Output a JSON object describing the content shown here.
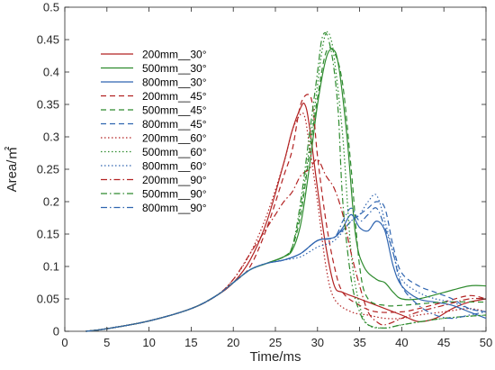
{
  "chart_data": {
    "type": "line",
    "title": "",
    "xlabel": "Time/ms",
    "ylabel": "Area/㎡",
    "xlim": [
      0,
      50
    ],
    "ylim": [
      0,
      0.5
    ],
    "x_ticks": [
      "0",
      "5",
      "10",
      "15",
      "20",
      "25",
      "30",
      "35",
      "40",
      "45",
      "50"
    ],
    "y_ticks": [
      "0",
      "0.05",
      "0.1",
      "0.15",
      "0.2",
      "0.25",
      "0.3",
      "0.35",
      "0.4",
      "0.45",
      "0.5"
    ],
    "grid": false,
    "legend_position": "top-left",
    "colors": {
      "200mm": "#b22222",
      "500mm": "#2e8b2e",
      "800mm": "#2f65b0"
    },
    "series": [
      {
        "name": "200mm__30°",
        "color": "#b22222",
        "dash": "solid",
        "points": [
          [
            2.5,
            0
          ],
          [
            5,
            0.004
          ],
          [
            10,
            0.016
          ],
          [
            15,
            0.035
          ],
          [
            18,
            0.055
          ],
          [
            20,
            0.075
          ],
          [
            22,
            0.11
          ],
          [
            24,
            0.17
          ],
          [
            26,
            0.26
          ],
          [
            27,
            0.31
          ],
          [
            28,
            0.345
          ],
          [
            28.5,
            0.35
          ],
          [
            29,
            0.32
          ],
          [
            30,
            0.22
          ],
          [
            31,
            0.13
          ],
          [
            32,
            0.07
          ],
          [
            33,
            0.06
          ],
          [
            35,
            0.05
          ],
          [
            37,
            0.04
          ],
          [
            40,
            0.025
          ],
          [
            42,
            0.015
          ],
          [
            44,
            0.02
          ],
          [
            46,
            0.035
          ],
          [
            48,
            0.045
          ],
          [
            50,
            0.05
          ]
        ]
      },
      {
        "name": "500mm__30°",
        "color": "#2e8b2e",
        "dash": "solid",
        "points": [
          [
            2.5,
            0
          ],
          [
            5,
            0.004
          ],
          [
            10,
            0.016
          ],
          [
            15,
            0.035
          ],
          [
            18,
            0.055
          ],
          [
            20,
            0.075
          ],
          [
            22,
            0.095
          ],
          [
            24,
            0.105
          ],
          [
            26,
            0.115
          ],
          [
            27,
            0.125
          ],
          [
            28,
            0.165
          ],
          [
            29,
            0.25
          ],
          [
            30,
            0.35
          ],
          [
            31,
            0.42
          ],
          [
            31.8,
            0.435
          ],
          [
            32.5,
            0.41
          ],
          [
            33.5,
            0.3
          ],
          [
            34.5,
            0.15
          ],
          [
            35.5,
            0.1
          ],
          [
            37,
            0.08
          ],
          [
            38,
            0.075
          ],
          [
            39,
            0.06
          ],
          [
            40,
            0.05
          ],
          [
            42,
            0.05
          ],
          [
            45,
            0.06
          ],
          [
            48,
            0.07
          ],
          [
            50,
            0.07
          ]
        ]
      },
      {
        "name": "800mm__30°",
        "color": "#2f65b0",
        "dash": "solid",
        "points": [
          [
            2.5,
            0
          ],
          [
            5,
            0.004
          ],
          [
            10,
            0.016
          ],
          [
            15,
            0.035
          ],
          [
            18,
            0.055
          ],
          [
            20,
            0.075
          ],
          [
            22,
            0.095
          ],
          [
            24,
            0.105
          ],
          [
            26,
            0.11
          ],
          [
            28,
            0.12
          ],
          [
            30,
            0.14
          ],
          [
            32,
            0.145
          ],
          [
            33,
            0.16
          ],
          [
            34,
            0.18
          ],
          [
            35,
            0.16
          ],
          [
            36,
            0.155
          ],
          [
            37,
            0.17
          ],
          [
            38,
            0.155
          ],
          [
            39,
            0.1
          ],
          [
            40,
            0.07
          ],
          [
            42,
            0.05
          ],
          [
            44,
            0.045
          ],
          [
            46,
            0.04
          ],
          [
            48,
            0.03
          ],
          [
            50,
            0.02
          ]
        ]
      },
      {
        "name": "200mm__45°",
        "color": "#b22222",
        "dash": "dashed",
        "points": [
          [
            2.5,
            0
          ],
          [
            5,
            0.004
          ],
          [
            10,
            0.016
          ],
          [
            15,
            0.035
          ],
          [
            18,
            0.055
          ],
          [
            20,
            0.075
          ],
          [
            22,
            0.1
          ],
          [
            24,
            0.16
          ],
          [
            26,
            0.24
          ],
          [
            27,
            0.28
          ],
          [
            28,
            0.35
          ],
          [
            29,
            0.365
          ],
          [
            29.5,
            0.34
          ],
          [
            30,
            0.27
          ],
          [
            31,
            0.17
          ],
          [
            32,
            0.1
          ],
          [
            33,
            0.06
          ],
          [
            35,
            0.04
          ],
          [
            37,
            0.03
          ],
          [
            40,
            0.03
          ],
          [
            42,
            0.035
          ],
          [
            45,
            0.045
          ],
          [
            48,
            0.055
          ],
          [
            50,
            0.05
          ]
        ]
      },
      {
        "name": "500mm__45°",
        "color": "#2e8b2e",
        "dash": "dashed",
        "points": [
          [
            2.5,
            0
          ],
          [
            5,
            0.004
          ],
          [
            10,
            0.016
          ],
          [
            15,
            0.035
          ],
          [
            18,
            0.055
          ],
          [
            20,
            0.075
          ],
          [
            22,
            0.095
          ],
          [
            24,
            0.105
          ],
          [
            26,
            0.115
          ],
          [
            27,
            0.13
          ],
          [
            28,
            0.18
          ],
          [
            29,
            0.27
          ],
          [
            30,
            0.36
          ],
          [
            31,
            0.43
          ],
          [
            32,
            0.43
          ],
          [
            33,
            0.38
          ],
          [
            34,
            0.25
          ],
          [
            35,
            0.1
          ],
          [
            36,
            0.05
          ],
          [
            38,
            0.04
          ],
          [
            40,
            0.04
          ],
          [
            45,
            0.045
          ],
          [
            50,
            0.045
          ]
        ]
      },
      {
        "name": "800mm__45°",
        "color": "#2f65b0",
        "dash": "dashed",
        "points": [
          [
            2.5,
            0
          ],
          [
            5,
            0.004
          ],
          [
            10,
            0.016
          ],
          [
            15,
            0.035
          ],
          [
            18,
            0.055
          ],
          [
            20,
            0.075
          ],
          [
            22,
            0.095
          ],
          [
            24,
            0.105
          ],
          [
            26,
            0.11
          ],
          [
            28,
            0.12
          ],
          [
            30,
            0.14
          ],
          [
            32,
            0.145
          ],
          [
            34,
            0.17
          ],
          [
            35,
            0.18
          ],
          [
            36,
            0.19
          ],
          [
            37,
            0.2
          ],
          [
            38,
            0.19
          ],
          [
            39,
            0.13
          ],
          [
            40,
            0.09
          ],
          [
            42,
            0.07
          ],
          [
            44,
            0.06
          ],
          [
            46,
            0.05
          ],
          [
            48,
            0.035
          ],
          [
            50,
            0.03
          ]
        ]
      },
      {
        "name": "200mm__60°",
        "color": "#b22222",
        "dash": "dotted",
        "points": [
          [
            2.5,
            0
          ],
          [
            5,
            0.004
          ],
          [
            10,
            0.016
          ],
          [
            15,
            0.035
          ],
          [
            18,
            0.055
          ],
          [
            20,
            0.08
          ],
          [
            22,
            0.12
          ],
          [
            24,
            0.18
          ],
          [
            26,
            0.26
          ],
          [
            27,
            0.31
          ],
          [
            28,
            0.335
          ],
          [
            28.5,
            0.33
          ],
          [
            29,
            0.29
          ],
          [
            30,
            0.2
          ],
          [
            31,
            0.1
          ],
          [
            32,
            0.05
          ],
          [
            34,
            0.03
          ],
          [
            36,
            0.025
          ],
          [
            38,
            0.02
          ],
          [
            40,
            0.02
          ],
          [
            42,
            0.025
          ],
          [
            45,
            0.03
          ],
          [
            48,
            0.035
          ],
          [
            50,
            0.03
          ]
        ]
      },
      {
        "name": "500mm__60°",
        "color": "#2e8b2e",
        "dash": "dotted",
        "points": [
          [
            2.5,
            0
          ],
          [
            5,
            0.004
          ],
          [
            10,
            0.016
          ],
          [
            15,
            0.035
          ],
          [
            18,
            0.055
          ],
          [
            20,
            0.075
          ],
          [
            22,
            0.095
          ],
          [
            24,
            0.105
          ],
          [
            26,
            0.115
          ],
          [
            27,
            0.13
          ],
          [
            28,
            0.19
          ],
          [
            29,
            0.28
          ],
          [
            30,
            0.38
          ],
          [
            30.5,
            0.43
          ],
          [
            31,
            0.46
          ],
          [
            31.5,
            0.455
          ],
          [
            32,
            0.42
          ],
          [
            33,
            0.3
          ],
          [
            34,
            0.12
          ],
          [
            35,
            0.04
          ],
          [
            36,
            0.01
          ],
          [
            38,
            0.005
          ],
          [
            40,
            0.01
          ],
          [
            45,
            0.02
          ],
          [
            50,
            0.025
          ]
        ]
      },
      {
        "name": "800mm__60°",
        "color": "#2f65b0",
        "dash": "dotted",
        "points": [
          [
            2.5,
            0
          ],
          [
            5,
            0.004
          ],
          [
            10,
            0.016
          ],
          [
            15,
            0.035
          ],
          [
            18,
            0.055
          ],
          [
            20,
            0.075
          ],
          [
            22,
            0.095
          ],
          [
            24,
            0.105
          ],
          [
            26,
            0.11
          ],
          [
            28,
            0.115
          ],
          [
            30,
            0.13
          ],
          [
            32,
            0.14
          ],
          [
            34,
            0.17
          ],
          [
            35,
            0.18
          ],
          [
            36,
            0.2
          ],
          [
            37,
            0.21
          ],
          [
            38,
            0.17
          ],
          [
            39,
            0.12
          ],
          [
            40,
            0.08
          ],
          [
            42,
            0.06
          ],
          [
            44,
            0.05
          ],
          [
            46,
            0.045
          ],
          [
            48,
            0.035
          ],
          [
            50,
            0.03
          ]
        ]
      },
      {
        "name": "200mm__90°",
        "color": "#b22222",
        "dash": "dashdot",
        "points": [
          [
            2.5,
            0
          ],
          [
            5,
            0.004
          ],
          [
            10,
            0.016
          ],
          [
            15,
            0.035
          ],
          [
            18,
            0.055
          ],
          [
            20,
            0.08
          ],
          [
            22,
            0.12
          ],
          [
            24,
            0.16
          ],
          [
            25,
            0.18
          ],
          [
            26,
            0.2
          ],
          [
            27,
            0.215
          ],
          [
            28,
            0.24
          ],
          [
            29,
            0.25
          ],
          [
            30,
            0.265
          ],
          [
            31,
            0.24
          ],
          [
            32,
            0.22
          ],
          [
            33,
            0.18
          ],
          [
            34,
            0.12
          ],
          [
            35,
            0.07
          ],
          [
            36,
            0.03
          ],
          [
            37,
            0.015
          ],
          [
            38,
            0.01
          ],
          [
            40,
            0.02
          ],
          [
            42,
            0.03
          ],
          [
            45,
            0.04
          ],
          [
            48,
            0.05
          ],
          [
            50,
            0.05
          ]
        ]
      },
      {
        "name": "500mm__90°",
        "color": "#2e8b2e",
        "dash": "dashdot",
        "points": [
          [
            2.5,
            0
          ],
          [
            5,
            0.004
          ],
          [
            10,
            0.016
          ],
          [
            15,
            0.035
          ],
          [
            18,
            0.055
          ],
          [
            20,
            0.075
          ],
          [
            22,
            0.095
          ],
          [
            24,
            0.105
          ],
          [
            26,
            0.115
          ],
          [
            27,
            0.13
          ],
          [
            28,
            0.2
          ],
          [
            29,
            0.3
          ],
          [
            30,
            0.4
          ],
          [
            30.5,
            0.45
          ],
          [
            31,
            0.46
          ],
          [
            31.5,
            0.44
          ],
          [
            32,
            0.4
          ],
          [
            32.5,
            0.33
          ],
          [
            33,
            0.2
          ],
          [
            34,
            0.08
          ],
          [
            35,
            0.03
          ],
          [
            36,
            0.01
          ],
          [
            38,
            0.005
          ],
          [
            40,
            0.01
          ],
          [
            45,
            0.02
          ],
          [
            50,
            0.025
          ]
        ]
      },
      {
        "name": "800mm__90°",
        "color": "#2f65b0",
        "dash": "dashdot",
        "points": [
          [
            2.5,
            0
          ],
          [
            5,
            0.004
          ],
          [
            10,
            0.016
          ],
          [
            15,
            0.035
          ],
          [
            18,
            0.055
          ],
          [
            20,
            0.075
          ],
          [
            22,
            0.095
          ],
          [
            24,
            0.105
          ],
          [
            26,
            0.11
          ],
          [
            28,
            0.12
          ],
          [
            30,
            0.14
          ],
          [
            32,
            0.145
          ],
          [
            33,
            0.17
          ],
          [
            34,
            0.19
          ],
          [
            35,
            0.17
          ],
          [
            36,
            0.18
          ],
          [
            37,
            0.19
          ],
          [
            38,
            0.16
          ],
          [
            39,
            0.12
          ],
          [
            40,
            0.07
          ],
          [
            42,
            0.04
          ],
          [
            44,
            0.025
          ],
          [
            46,
            0.02
          ],
          [
            48,
            0.025
          ],
          [
            50,
            0.03
          ]
        ]
      }
    ]
  }
}
